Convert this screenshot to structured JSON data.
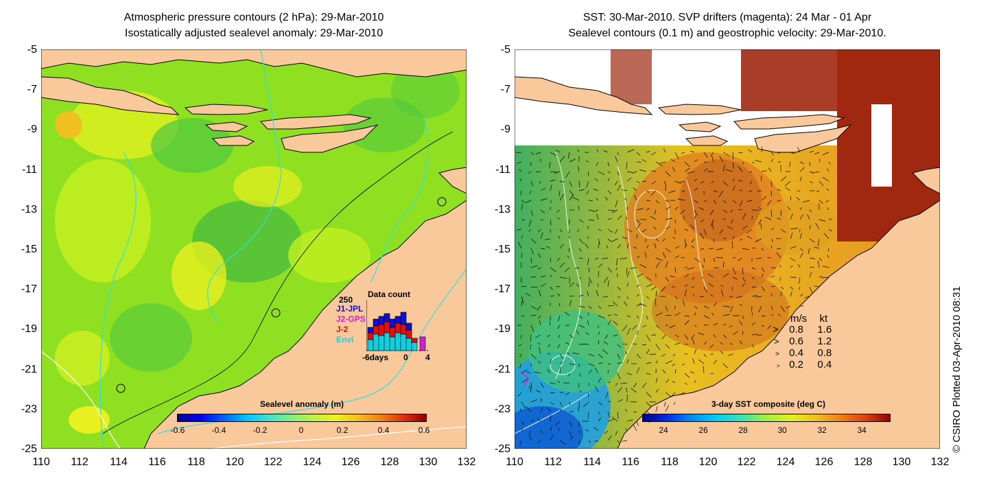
{
  "left_panel": {
    "title_line1": "Atmospheric pressure contours (2 hPa): 29-Mar-2010",
    "title_line2": "Isostatically adjusted sealevel anomaly: 29-Mar-2010",
    "y_ticks": [
      "-5",
      "-7",
      "-9",
      "-11",
      "-13",
      "-15",
      "-17",
      "-19",
      "-21",
      "-23",
      "-25"
    ],
    "x_ticks": [
      "110",
      "112",
      "114",
      "116",
      "118",
      "120",
      "122",
      "124",
      "126",
      "128",
      "130",
      "132"
    ],
    "colorbar": {
      "label": "Sealevel anomaly (m)",
      "ticks": [
        "-0.6",
        "-0.4",
        "-0.2",
        "0",
        "0.2",
        "0.4",
        "0.6"
      ],
      "range": [
        -0.6,
        0.6
      ]
    },
    "data_count": {
      "title": "Data count",
      "max_label": "250",
      "x_labels": [
        "-6days",
        "0",
        "4"
      ],
      "series_labels": [
        "J1-JPL",
        "J2-GPS",
        "J-2",
        "Envi"
      ],
      "colors": [
        "#1010d0",
        "#d020d0",
        "#e01010",
        "#10d0e0"
      ]
    }
  },
  "right_panel": {
    "title_line1": "SST: 30-Mar-2010. SVP drifters (magenta): 24 Mar - 01 Apr",
    "title_line2": "Sealevel contours (0.1 m) and geostrophic velocity: 29-Mar-2010.",
    "y_ticks": [
      "-5",
      "-7",
      "-9",
      "-11",
      "-13",
      "-15",
      "-17",
      "-19",
      "-21",
      "-23",
      "-25"
    ],
    "x_ticks": [
      "110",
      "112",
      "114",
      "116",
      "118",
      "120",
      "122",
      "124",
      "126",
      "128",
      "130",
      "132"
    ],
    "colorbar": {
      "label": "3-day SST composite (deg C)",
      "ticks": [
        "24",
        "26",
        "28",
        "30",
        "32",
        "34"
      ],
      "range": [
        23,
        35.5
      ]
    },
    "velocity_legend": {
      "header_ms": "m/s",
      "header_kt": "kt",
      "rows": [
        {
          "ms": "0.8",
          "kt": "1.6"
        },
        {
          "ms": "0.6",
          "kt": "1.2"
        },
        {
          "ms": "0.4",
          "kt": "0.8"
        },
        {
          "ms": "0.2",
          "kt": "0.4"
        }
      ]
    }
  },
  "credit": "© CSIRO Plotted 03-Apr-2010 08:31",
  "colors": {
    "land": "#f9c99b",
    "ocean_green": "#8fe020",
    "contour_cyan": "#30e0e0",
    "sst_orange": "#e8a020",
    "cloud_brown": "#a02810"
  }
}
